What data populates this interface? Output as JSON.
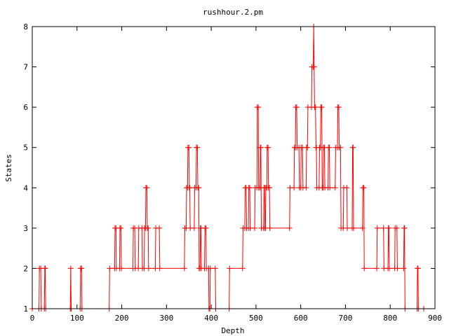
{
  "chart_data": {
    "type": "line",
    "title": "rushhour.2.pm",
    "xlabel": "Depth",
    "ylabel": "States",
    "xlim": [
      0,
      900
    ],
    "ylim": [
      1,
      8
    ],
    "xticks": [
      0,
      100,
      200,
      300,
      400,
      500,
      600,
      700,
      800,
      900
    ],
    "yticks": [
      1,
      2,
      3,
      4,
      5,
      6,
      7,
      8
    ],
    "grid": false,
    "legend": "none",
    "series": [
      {
        "color": "#ff0000",
        "marker": "plus",
        "points": [
          [
            0,
            1
          ],
          [
            15,
            1
          ],
          [
            16,
            2
          ],
          [
            19,
            2
          ],
          [
            20,
            1
          ],
          [
            27,
            1
          ],
          [
            28,
            2
          ],
          [
            29,
            2
          ],
          [
            30,
            1
          ],
          [
            85,
            1
          ],
          [
            86,
            2
          ],
          [
            87,
            1
          ],
          [
            107,
            1
          ],
          [
            108,
            2
          ],
          [
            110,
            2
          ],
          [
            111,
            1
          ],
          [
            172,
            1
          ],
          [
            173,
            2
          ],
          [
            184,
            2
          ],
          [
            185,
            3
          ],
          [
            187,
            3
          ],
          [
            188,
            2
          ],
          [
            195,
            2
          ],
          [
            196,
            3
          ],
          [
            198,
            3
          ],
          [
            199,
            2
          ],
          [
            225,
            2
          ],
          [
            226,
            3
          ],
          [
            229,
            3
          ],
          [
            230,
            2
          ],
          [
            237,
            2
          ],
          [
            238,
            3
          ],
          [
            245,
            3
          ],
          [
            246,
            2
          ],
          [
            250,
            2
          ],
          [
            251,
            3
          ],
          [
            253,
            3
          ],
          [
            254,
            4
          ],
          [
            256,
            4
          ],
          [
            257,
            3
          ],
          [
            259,
            3
          ],
          [
            260,
            2
          ],
          [
            275,
            2
          ],
          [
            276,
            3
          ],
          [
            284,
            3
          ],
          [
            285,
            2
          ],
          [
            340,
            2
          ],
          [
            341,
            3
          ],
          [
            344,
            3
          ],
          [
            345,
            4
          ],
          [
            347,
            4
          ],
          [
            348,
            5
          ],
          [
            350,
            5
          ],
          [
            351,
            4
          ],
          [
            352,
            4
          ],
          [
            353,
            3
          ],
          [
            362,
            3
          ],
          [
            363,
            4
          ],
          [
            366,
            4
          ],
          [
            367,
            5
          ],
          [
            369,
            5
          ],
          [
            370,
            4
          ],
          [
            372,
            4
          ],
          [
            373,
            2
          ],
          [
            375,
            2
          ],
          [
            376,
            3
          ],
          [
            377,
            3
          ],
          [
            378,
            2
          ],
          [
            385,
            2
          ],
          [
            386,
            3
          ],
          [
            388,
            3
          ],
          [
            389,
            2
          ],
          [
            394,
            2
          ],
          [
            395,
            1
          ],
          [
            397,
            1
          ],
          [
            398,
            2
          ],
          [
            409,
            2
          ],
          [
            410,
            1
          ],
          [
            440,
            1
          ],
          [
            441,
            2
          ],
          [
            470,
            2
          ],
          [
            471,
            3
          ],
          [
            475,
            3
          ],
          [
            476,
            4
          ],
          [
            478,
            4
          ],
          [
            479,
            3
          ],
          [
            483,
            3
          ],
          [
            484,
            4
          ],
          [
            486,
            4
          ],
          [
            487,
            3
          ],
          [
            497,
            3
          ],
          [
            498,
            4
          ],
          [
            502,
            4
          ],
          [
            503,
            6
          ],
          [
            505,
            6
          ],
          [
            506,
            4
          ],
          [
            509,
            4
          ],
          [
            510,
            5
          ],
          [
            511,
            5
          ],
          [
            512,
            3
          ],
          [
            517,
            3
          ],
          [
            518,
            4
          ],
          [
            519,
            4
          ],
          [
            520,
            3
          ],
          [
            521,
            3
          ],
          [
            522,
            4
          ],
          [
            524,
            4
          ],
          [
            525,
            5
          ],
          [
            527,
            5
          ],
          [
            528,
            4
          ],
          [
            530,
            4
          ],
          [
            531,
            3
          ],
          [
            575,
            3
          ],
          [
            576,
            4
          ],
          [
            585,
            4
          ],
          [
            586,
            5
          ],
          [
            588,
            5
          ],
          [
            589,
            6
          ],
          [
            591,
            6
          ],
          [
            592,
            5
          ],
          [
            596,
            5
          ],
          [
            597,
            4
          ],
          [
            600,
            4
          ],
          [
            601,
            5
          ],
          [
            604,
            5
          ],
          [
            605,
            4
          ],
          [
            612,
            4
          ],
          [
            613,
            5
          ],
          [
            615,
            5
          ],
          [
            616,
            6
          ],
          [
            624,
            6
          ],
          [
            625,
            7
          ],
          [
            628,
            7
          ],
          [
            629,
            8
          ],
          [
            630,
            7
          ],
          [
            631,
            6
          ],
          [
            633,
            6
          ],
          [
            634,
            5
          ],
          [
            635,
            5
          ],
          [
            636,
            4
          ],
          [
            641,
            4
          ],
          [
            642,
            5
          ],
          [
            644,
            5
          ],
          [
            645,
            6
          ],
          [
            647,
            6
          ],
          [
            648,
            4
          ],
          [
            650,
            4
          ],
          [
            651,
            5
          ],
          [
            653,
            5
          ],
          [
            654,
            4
          ],
          [
            661,
            4
          ],
          [
            662,
            5
          ],
          [
            664,
            5
          ],
          [
            665,
            4
          ],
          [
            677,
            4
          ],
          [
            678,
            5
          ],
          [
            682,
            5
          ],
          [
            683,
            6
          ],
          [
            685,
            6
          ],
          [
            686,
            5
          ],
          [
            689,
            5
          ],
          [
            690,
            3
          ],
          [
            695,
            3
          ],
          [
            696,
            4
          ],
          [
            703,
            4
          ],
          [
            704,
            3
          ],
          [
            715,
            3
          ],
          [
            716,
            5
          ],
          [
            717,
            5
          ],
          [
            718,
            3
          ],
          [
            738,
            3
          ],
          [
            739,
            4
          ],
          [
            741,
            4
          ],
          [
            742,
            2
          ],
          [
            770,
            2
          ],
          [
            771,
            3
          ],
          [
            785,
            3
          ],
          [
            786,
            2
          ],
          [
            795,
            2
          ],
          [
            796,
            3
          ],
          [
            797,
            3
          ],
          [
            798,
            2
          ],
          [
            810,
            2
          ],
          [
            811,
            3
          ],
          [
            815,
            3
          ],
          [
            816,
            2
          ],
          [
            830,
            2
          ],
          [
            831,
            3
          ],
          [
            832,
            3
          ],
          [
            833,
            1
          ],
          [
            860,
            1
          ],
          [
            861,
            2
          ],
          [
            862,
            2
          ],
          [
            863,
            1
          ],
          [
            875,
            1
          ]
        ]
      }
    ]
  }
}
